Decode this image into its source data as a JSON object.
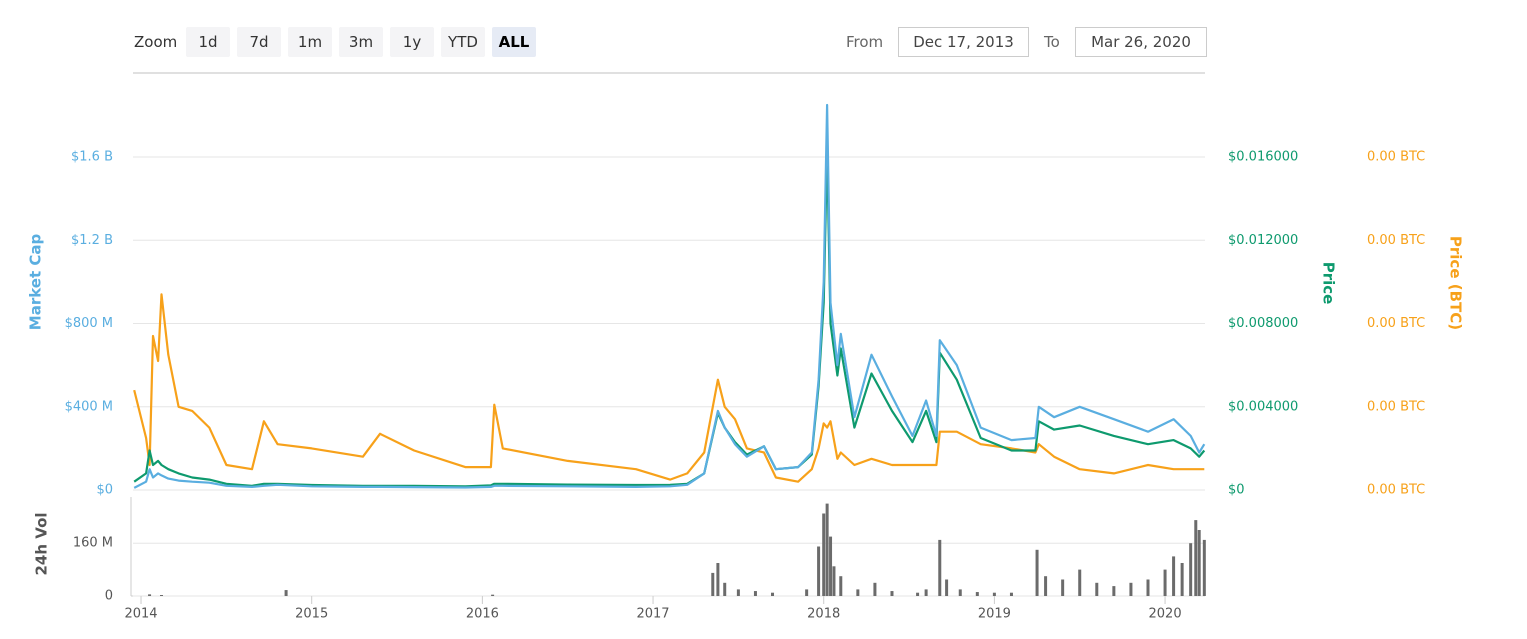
{
  "controls": {
    "zoom_label": "Zoom",
    "zoom_buttons": [
      "1d",
      "7d",
      "1m",
      "3m",
      "1y",
      "YTD",
      "ALL"
    ],
    "from_label": "From",
    "from": "Dec 17, 2013",
    "to_label": "To",
    "to": "Mar 26, 2020"
  },
  "chart_data": [
    {
      "type": "line",
      "x": [
        2013.96,
        2014.03,
        2014.05,
        2014.07,
        2014.1,
        2014.12,
        2014.16,
        2014.22,
        2014.3,
        2014.4,
        2014.5,
        2014.65,
        2014.72,
        2014.8,
        2015.0,
        2015.3,
        2015.4,
        2015.6,
        2015.9,
        2016.05,
        2016.07,
        2016.12,
        2016.5,
        2016.9,
        2017.1,
        2017.2,
        2017.3,
        2017.38,
        2017.42,
        2017.48,
        2017.55,
        2017.65,
        2017.72,
        2017.85,
        2017.93,
        2017.97,
        2018.0,
        2018.02,
        2018.04,
        2018.08,
        2018.1,
        2018.18,
        2018.28,
        2018.4,
        2018.52,
        2018.6,
        2018.66,
        2018.68,
        2018.78,
        2018.92,
        2019.1,
        2019.24,
        2019.26,
        2019.35,
        2019.5,
        2019.7,
        2019.9,
        2020.05,
        2020.15,
        2020.2,
        2020.23
      ],
      "xlim": [
        2013.953,
        2020.234
      ],
      "ylim": [
        0,
        1900000000
      ],
      "yticks": [
        {
          "value": 0,
          "label": "$0"
        },
        {
          "value": 400000000,
          "label": "$400 M"
        },
        {
          "value": 800000000,
          "label": "$800 M"
        },
        {
          "value": 1200000000,
          "label": "$1.2 B"
        },
        {
          "value": 1600000000,
          "label": "$1.6 B"
        }
      ],
      "y2lim": [
        0,
        0.019
      ],
      "y2ticks": [
        {
          "value": 0,
          "label": "$0"
        },
        {
          "value": 0.004,
          "label": "$0.004000"
        },
        {
          "value": 0.008,
          "label": "$0.008000"
        },
        {
          "value": 0.012,
          "label": "$0.012000"
        },
        {
          "value": 0.016,
          "label": "$0.016000"
        }
      ],
      "y3lim": [
        0,
        1.9e-06
      ],
      "y3ticks": [
        {
          "value": 0,
          "label": "0.00 BTC"
        },
        {
          "value": 4e-07,
          "label": "0.00 BTC"
        },
        {
          "value": 8e-07,
          "label": "0.00 BTC"
        },
        {
          "value": 1.2e-06,
          "label": "0.00 BTC"
        },
        {
          "value": 1.6e-06,
          "label": "0.00 BTC"
        }
      ],
      "ylabel": "Market Cap",
      "y2label": "Price",
      "y3label": "Price (BTC)",
      "grid": true,
      "series": [
        {
          "name": "Market Cap",
          "color": "#5aaee0",
          "axis": "y",
          "values": [
            10000000,
            40000000,
            100000000,
            60000000,
            80000000,
            70000000,
            55000000,
            45000000,
            40000000,
            35000000,
            20000000,
            15000000,
            20000000,
            25000000,
            18000000,
            15000000,
            15000000,
            14000000,
            12000000,
            15000000,
            20000000,
            20000000,
            18000000,
            15000000,
            18000000,
            25000000,
            80000000,
            380000000,
            300000000,
            220000000,
            160000000,
            210000000,
            100000000,
            110000000,
            180000000,
            530000000,
            1000000000,
            1850000000,
            900000000,
            600000000,
            750000000,
            350000000,
            650000000,
            450000000,
            260000000,
            430000000,
            260000000,
            720000000,
            600000000,
            300000000,
            240000000,
            250000000,
            400000000,
            350000000,
            400000000,
            340000000,
            280000000,
            340000000,
            260000000,
            180000000,
            220000000
          ]
        },
        {
          "name": "Price",
          "color": "#0e9a6e",
          "axis": "y2",
          "values": [
            0.0004,
            0.0008,
            0.0019,
            0.0012,
            0.0014,
            0.0012,
            0.001,
            0.0008,
            0.0006,
            0.0005,
            0.0003,
            0.0002,
            0.0003,
            0.0003,
            0.00024,
            0.0002,
            0.0002,
            0.0002,
            0.00018,
            0.00022,
            0.0003,
            0.0003,
            0.00026,
            0.00024,
            0.00025,
            0.0003,
            0.0008,
            0.0037,
            0.003,
            0.0023,
            0.0017,
            0.0021,
            0.001,
            0.0011,
            0.0017,
            0.005,
            0.009,
            0.0164,
            0.008,
            0.0055,
            0.0068,
            0.003,
            0.0056,
            0.0038,
            0.0023,
            0.0038,
            0.0023,
            0.0066,
            0.0053,
            0.0025,
            0.0019,
            0.0019,
            0.0033,
            0.0029,
            0.0031,
            0.0026,
            0.0022,
            0.0024,
            0.002,
            0.0016,
            0.0019
          ]
        },
        {
          "name": "Price (BTC)",
          "color": "#f7a11a",
          "axis": "y3",
          "values": [
            4.8e-07,
            2.5e-07,
            1.2e-07,
            7.4e-07,
            6.2e-07,
            9.4e-07,
            6.5e-07,
            4e-07,
            3.8e-07,
            3e-07,
            1.2e-07,
            1e-07,
            3.3e-07,
            2.2e-07,
            2e-07,
            1.6e-07,
            2.7e-07,
            1.9e-07,
            1.1e-07,
            1.1e-07,
            4.1e-07,
            2e-07,
            1.4e-07,
            1e-07,
            5e-08,
            8e-08,
            1.8e-07,
            5.3e-07,
            4e-07,
            3.4e-07,
            2e-07,
            1.8e-07,
            6e-08,
            4e-08,
            1e-07,
            2e-07,
            3.2e-07,
            3e-07,
            3.3e-07,
            1.5e-07,
            1.8e-07,
            1.2e-07,
            1.5e-07,
            1.2e-07,
            1.2e-07,
            1.2e-07,
            1.2e-07,
            2.8e-07,
            2.8e-07,
            2.2e-07,
            2e-07,
            1.8e-07,
            2.2e-07,
            1.6e-07,
            1e-07,
            8e-08,
            1.2e-07,
            1e-07,
            1e-07,
            1e-07,
            1e-07
          ]
        }
      ]
    },
    {
      "type": "bar",
      "x": [
        2014.05,
        2014.12,
        2014.85,
        2016.06,
        2017.35,
        2017.38,
        2017.42,
        2017.5,
        2017.6,
        2017.7,
        2017.9,
        2017.97,
        2018.0,
        2018.02,
        2018.04,
        2018.06,
        2018.1,
        2018.2,
        2018.3,
        2018.4,
        2018.55,
        2018.6,
        2018.68,
        2018.72,
        2018.8,
        2018.9,
        2019.0,
        2019.1,
        2019.25,
        2019.3,
        2019.4,
        2019.5,
        2019.6,
        2019.7,
        2019.8,
        2019.9,
        2020.0,
        2020.05,
        2020.1,
        2020.15,
        2020.18,
        2020.2,
        2020.23
      ],
      "values": [
        5000000,
        3000000,
        18000000,
        4000000,
        70000000,
        100000000,
        40000000,
        20000000,
        15000000,
        10000000,
        20000000,
        150000000,
        250000000,
        280000000,
        180000000,
        90000000,
        60000000,
        20000000,
        40000000,
        15000000,
        10000000,
        20000000,
        170000000,
        50000000,
        20000000,
        12000000,
        10000000,
        10000000,
        140000000,
        60000000,
        50000000,
        80000000,
        40000000,
        30000000,
        40000000,
        50000000,
        80000000,
        120000000,
        100000000,
        160000000,
        230000000,
        200000000,
        170000000
      ],
      "color": "#6b6b6b",
      "xlim": [
        2013.953,
        2020.234
      ],
      "xticks": [
        2014,
        2015,
        2016,
        2017,
        2018,
        2019,
        2020
      ],
      "ylim": [
        0,
        300000000
      ],
      "yticks": [
        0,
        {
          "value": 160000000,
          "label": "160 M"
        }
      ],
      "ylabel": "24h Vol",
      "grid": true
    }
  ]
}
